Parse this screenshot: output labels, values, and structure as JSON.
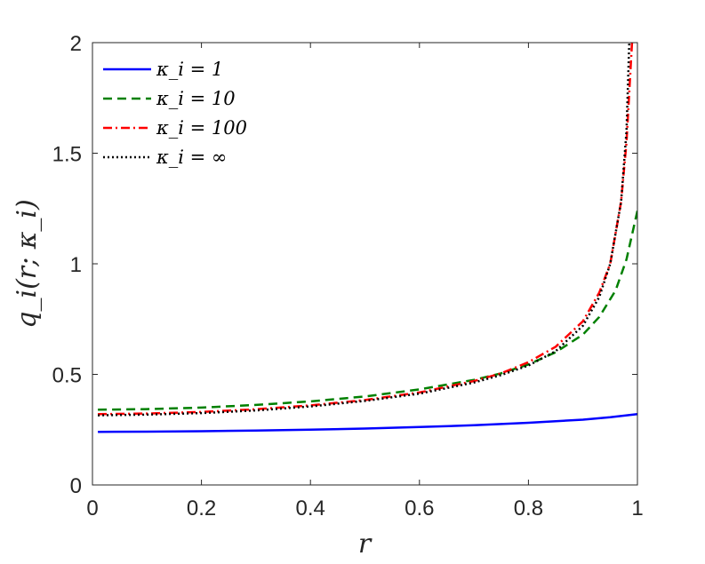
{
  "chart_data": {
    "type": "line",
    "xlabel": "r",
    "ylabel": "q_i(r; κ_i)",
    "xlim": [
      0,
      1
    ],
    "ylim": [
      0,
      2
    ],
    "xticks": [
      0,
      0.2,
      0.4,
      0.6,
      0.8,
      1
    ],
    "yticks": [
      0,
      0.5,
      1,
      1.5,
      2
    ],
    "xtick_labels": [
      "0",
      "0.2",
      "0.4",
      "0.6",
      "0.8",
      "1"
    ],
    "ytick_labels": [
      "0",
      "0.5",
      "1",
      "1.5",
      "2"
    ],
    "grid": false,
    "legend_position": "top-left",
    "series": [
      {
        "name": "κ_i = 1",
        "color": "#0000ff",
        "dash": "solid",
        "x": [
          0.01,
          0.1,
          0.2,
          0.3,
          0.4,
          0.5,
          0.6,
          0.7,
          0.8,
          0.9,
          0.95,
          1.0
        ],
        "y": [
          0.24,
          0.241,
          0.243,
          0.246,
          0.25,
          0.255,
          0.262,
          0.27,
          0.281,
          0.295,
          0.306,
          0.32
        ]
      },
      {
        "name": "κ_i = 10",
        "color": "#008000",
        "dash": "dashed",
        "x": [
          0.01,
          0.1,
          0.2,
          0.3,
          0.4,
          0.5,
          0.6,
          0.7,
          0.75,
          0.8,
          0.85,
          0.9,
          0.93,
          0.96,
          0.98,
          1.0
        ],
        "y": [
          0.34,
          0.343,
          0.35,
          0.362,
          0.378,
          0.4,
          0.432,
          0.475,
          0.505,
          0.545,
          0.6,
          0.68,
          0.76,
          0.88,
          1.02,
          1.24
        ]
      },
      {
        "name": "κ_i = 100",
        "color": "#ff0000",
        "dash": "dashdot",
        "x": [
          0.01,
          0.1,
          0.2,
          0.3,
          0.4,
          0.5,
          0.6,
          0.7,
          0.75,
          0.8,
          0.85,
          0.9,
          0.93,
          0.95,
          0.97,
          0.98,
          0.99
        ],
        "y": [
          0.32,
          0.323,
          0.33,
          0.342,
          0.36,
          0.384,
          0.418,
          0.47,
          0.505,
          0.555,
          0.625,
          0.74,
          0.87,
          1.0,
          1.28,
          1.55,
          2.0
        ]
      },
      {
        "name": "κ_i = ∞",
        "color": "#000000",
        "dash": "dotted",
        "x": [
          0.01,
          0.1,
          0.2,
          0.3,
          0.4,
          0.5,
          0.6,
          0.7,
          0.75,
          0.8,
          0.85,
          0.9,
          0.93,
          0.95,
          0.97,
          0.98,
          0.985
        ],
        "y": [
          0.315,
          0.318,
          0.325,
          0.337,
          0.355,
          0.38,
          0.413,
          0.463,
          0.497,
          0.54,
          0.605,
          0.72,
          0.85,
          1.0,
          1.28,
          1.6,
          2.0
        ]
      }
    ]
  }
}
